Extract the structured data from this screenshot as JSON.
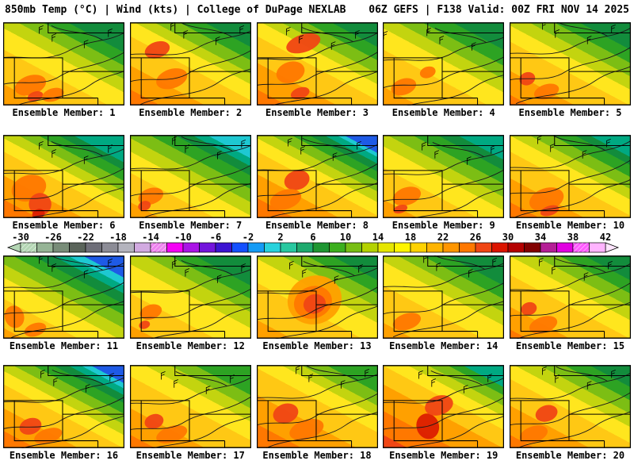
{
  "header": {
    "left": "850mb Temp (°C) | Wind (kts) | College of DuPage NEXLAB",
    "right": "06Z GEFS | F138 Valid: 00Z FRI NOV 14 2025"
  },
  "colorbar": {
    "unit": "°C",
    "ticks": [
      -30,
      -26,
      -22,
      -18,
      -14,
      -10,
      -6,
      -2,
      2,
      6,
      10,
      14,
      18,
      22,
      26,
      30,
      34,
      38,
      42
    ],
    "range": [
      -30,
      42
    ],
    "segment_step": 2,
    "segment_colors": [
      "#b4d6b4",
      "#96b496",
      "#788c78",
      "#5a645a",
      "#6e6e78",
      "#8c8c96",
      "#b4b4be",
      "#d2aae1",
      "#ee82ee",
      "#f500f5",
      "#aa14e6",
      "#7314dc",
      "#3c14d2",
      "#1450ff",
      "#149bf5",
      "#28d2dc",
      "#28c8a0",
      "#1eaa6e",
      "#1e9632",
      "#3caf1e",
      "#78be14",
      "#b4d200",
      "#e6e600",
      "#fff500",
      "#ffd200",
      "#ffb400",
      "#ff9600",
      "#ff7800",
      "#f04614",
      "#dc1400",
      "#b40000",
      "#820000",
      "#b41e96",
      "#e100e1",
      "#ff5aff",
      "#ffb4ff"
    ],
    "hatched_segments": [
      0,
      8,
      34
    ],
    "arrow_left_color": "#b4d6b4",
    "arrow_right_color": "#ffe6ff"
  },
  "palette": {
    "gold": "#ffc814",
    "yel": "#ffe61e",
    "yg": "#c3d40f",
    "grn1": "#7cbe14",
    "grn2": "#2da323",
    "dgrn": "#128c3c",
    "teal": "#00a982",
    "cyan": "#1ec8d2",
    "blue": "#1e5ae6",
    "org1": "#ffa000",
    "org2": "#ff7800",
    "red": "#f04614",
    "dred": "#dc1e00"
  },
  "map_overlay": {
    "state_borders": "M14,44 H74 V94 H14 Z M14,44 H0 M56,0 V13 H151 M74,61 H151 M74,94 H118 M118,94 V103",
    "contours": [
      "M-4,78 C20,70 48,82 72,66 C96,52 118,58 156,34",
      "M-4,44 C28,40 52,52 84,34 C110,20 130,26 156,10",
      "M10,106 C40,92 80,98 108,78 C128,64 142,66 156,58",
      "M60,4 C80,14 104,10 124,22"
    ],
    "wind_barbs": [
      [
        50,
        20
      ],
      [
        90,
        28
      ],
      [
        120,
        14
      ],
      [
        34,
        10
      ]
    ]
  },
  "panels": [
    {
      "member": 1,
      "label": "Ensemble Member: 1",
      "bands": [
        [
          "org1",
          0.16
        ],
        [
          "gold",
          0.42
        ],
        [
          "yel",
          0.58
        ],
        [
          "yg",
          0.68
        ],
        [
          "grn1",
          0.78
        ],
        [
          "grn2",
          0.88
        ],
        [
          "dgrn",
          1
        ]
      ],
      "spots": [
        [
          "org2",
          34,
          78,
          20,
          12
        ],
        [
          "red",
          40,
          92,
          10,
          6
        ],
        [
          "org2",
          62,
          90,
          14,
          8
        ]
      ],
      "shift": [
        0,
        0
      ]
    },
    {
      "member": 2,
      "label": "Ensemble Member: 2",
      "bands": [
        [
          "org2",
          0.12
        ],
        [
          "org1",
          0.3
        ],
        [
          "gold",
          0.52
        ],
        [
          "yel",
          0.64
        ],
        [
          "yg",
          0.72
        ],
        [
          "grn1",
          0.82
        ],
        [
          "grn2",
          0.92
        ],
        [
          "dgrn",
          1
        ]
      ],
      "spots": [
        [
          "red",
          34,
          34,
          16,
          10
        ],
        [
          "org2",
          52,
          70,
          20,
          12
        ]
      ],
      "shift": [
        3,
        -4
      ]
    },
    {
      "member": 3,
      "label": "Ensemble Member: 3",
      "bands": [
        [
          "org2",
          0.12
        ],
        [
          "org1",
          0.32
        ],
        [
          "gold",
          0.52
        ],
        [
          "yel",
          0.64
        ],
        [
          "yg",
          0.72
        ],
        [
          "grn1",
          0.82
        ],
        [
          "grn2",
          0.92
        ],
        [
          "dgrn",
          1
        ]
      ],
      "spots": [
        [
          "red",
          58,
          26,
          22,
          11
        ],
        [
          "org2",
          42,
          62,
          18,
          13
        ],
        [
          "red",
          54,
          88,
          12,
          7
        ]
      ],
      "shift": [
        -4,
        2
      ]
    },
    {
      "member": 4,
      "label": "Ensemble Member: 4",
      "bands": [
        [
          "org1",
          0.14
        ],
        [
          "gold",
          0.42
        ],
        [
          "yel",
          0.58
        ],
        [
          "yg",
          0.68
        ],
        [
          "grn1",
          0.78
        ],
        [
          "grn2",
          0.9
        ],
        [
          "dgrn",
          1
        ]
      ],
      "spots": [
        [
          "org2",
          26,
          80,
          16,
          10
        ],
        [
          "org2",
          56,
          62,
          10,
          7
        ]
      ],
      "shift": [
        5,
        3
      ]
    },
    {
      "member": 5,
      "label": "Ensemble Member: 5",
      "bands": [
        [
          "org2",
          0.08
        ],
        [
          "org1",
          0.26
        ],
        [
          "gold",
          0.48
        ],
        [
          "yel",
          0.6
        ],
        [
          "yg",
          0.7
        ],
        [
          "grn1",
          0.8
        ],
        [
          "grn2",
          0.9
        ],
        [
          "dgrn",
          1
        ]
      ],
      "spots": [
        [
          "red",
          22,
          70,
          10,
          8
        ],
        [
          "org2",
          46,
          86,
          16,
          9
        ]
      ],
      "shift": [
        -2,
        -5
      ]
    },
    {
      "member": 6,
      "label": "Ensemble Member: 6",
      "bands": [
        [
          "org2",
          0.14
        ],
        [
          "org1",
          0.32
        ],
        [
          "gold",
          0.5
        ],
        [
          "yel",
          0.6
        ],
        [
          "yg",
          0.68
        ],
        [
          "grn1",
          0.76
        ],
        [
          "grn2",
          0.84
        ],
        [
          "dgrn",
          0.9
        ],
        [
          "teal",
          1
        ]
      ],
      "spots": [
        [
          "org2",
          32,
          66,
          22,
          16
        ],
        [
          "red",
          46,
          86,
          14,
          14
        ],
        [
          "dred",
          44,
          98,
          8,
          6
        ]
      ],
      "shift": [
        0,
        4
      ]
    },
    {
      "member": 7,
      "label": "Ensemble Member: 7",
      "bands": [
        [
          "org1",
          0.12
        ],
        [
          "gold",
          0.34
        ],
        [
          "yel",
          0.5
        ],
        [
          "yg",
          0.6
        ],
        [
          "grn1",
          0.7
        ],
        [
          "grn2",
          0.8
        ],
        [
          "dgrn",
          0.87
        ],
        [
          "teal",
          0.93
        ],
        [
          "cyan",
          1
        ]
      ],
      "spots": [
        [
          "org2",
          26,
          76,
          16,
          10
        ],
        [
          "red",
          18,
          88,
          8,
          6
        ]
      ],
      "shift": [
        4,
        -2
      ]
    },
    {
      "member": 8,
      "label": "Ensemble Member: 8",
      "bands": [
        [
          "org2",
          0.15
        ],
        [
          "org1",
          0.33
        ],
        [
          "gold",
          0.5
        ],
        [
          "yel",
          0.6
        ],
        [
          "yg",
          0.68
        ],
        [
          "grn1",
          0.76
        ],
        [
          "grn2",
          0.83
        ],
        [
          "dgrn",
          0.89
        ],
        [
          "teal",
          0.94
        ],
        [
          "cyan",
          0.97
        ],
        [
          "blue",
          1
        ]
      ],
      "spots": [
        [
          "red",
          50,
          56,
          16,
          12
        ],
        [
          "org2",
          36,
          80,
          20,
          12
        ]
      ],
      "shift": [
        -3,
        0
      ]
    },
    {
      "member": 9,
      "label": "Ensemble Member: 9",
      "bands": [
        [
          "org1",
          0.14
        ],
        [
          "gold",
          0.38
        ],
        [
          "yel",
          0.54
        ],
        [
          "yg",
          0.64
        ],
        [
          "grn1",
          0.74
        ],
        [
          "grn2",
          0.84
        ],
        [
          "dgrn",
          0.92
        ],
        [
          "teal",
          1
        ]
      ],
      "spots": [
        [
          "org2",
          30,
          76,
          18,
          11
        ],
        [
          "red",
          22,
          92,
          9,
          5
        ]
      ],
      "shift": [
        2,
        5
      ]
    },
    {
      "member": 10,
      "label": "Ensemble Member: 10",
      "bands": [
        [
          "org2",
          0.12
        ],
        [
          "org1",
          0.3
        ],
        [
          "gold",
          0.5
        ],
        [
          "yel",
          0.62
        ],
        [
          "yg",
          0.7
        ],
        [
          "grn1",
          0.79
        ],
        [
          "grn2",
          0.88
        ],
        [
          "dgrn",
          0.94
        ],
        [
          "teal",
          1
        ]
      ],
      "spots": [
        [
          "org2",
          46,
          80,
          22,
          14
        ],
        [
          "red",
          50,
          94,
          12,
          6
        ]
      ],
      "shift": [
        -5,
        -3
      ]
    },
    {
      "member": 11,
      "label": "Ensemble Member: 11",
      "bands": [
        [
          "org1",
          0.08
        ],
        [
          "gold",
          0.3
        ],
        [
          "yel",
          0.46
        ],
        [
          "yg",
          0.56
        ],
        [
          "grn1",
          0.66
        ],
        [
          "grn2",
          0.74
        ],
        [
          "dgrn",
          0.82
        ],
        [
          "teal",
          0.88
        ],
        [
          "cyan",
          0.94
        ],
        [
          "blue",
          1
        ]
      ],
      "spots": [
        [
          "org2",
          14,
          76,
          12,
          14
        ],
        [
          "org2",
          40,
          92,
          14,
          8
        ]
      ],
      "shift": [
        0,
        -4
      ]
    },
    {
      "member": 12,
      "label": "Ensemble Member: 12",
      "bands": [
        [
          "org1",
          0.1
        ],
        [
          "gold",
          0.34
        ],
        [
          "yel",
          0.56
        ],
        [
          "yg",
          0.68
        ],
        [
          "grn1",
          0.78
        ],
        [
          "grn2",
          0.88
        ],
        [
          "dgrn",
          1
        ]
      ],
      "spots": [
        [
          "org2",
          26,
          70,
          14,
          9
        ],
        [
          "red",
          18,
          86,
          7,
          5
        ]
      ],
      "shift": [
        4,
        2
      ]
    },
    {
      "member": 13,
      "label": "Ensemble Member: 13",
      "bands": [
        [
          "org1",
          0.14
        ],
        [
          "gold",
          0.42
        ],
        [
          "yel",
          0.6
        ],
        [
          "yg",
          0.72
        ],
        [
          "grn1",
          0.82
        ],
        [
          "grn2",
          0.92
        ],
        [
          "dgrn",
          1
        ]
      ],
      "spots": [
        [
          "org1",
          72,
          55,
          34,
          30
        ],
        [
          "org2",
          70,
          58,
          24,
          20
        ],
        [
          "red",
          72,
          60,
          14,
          12
        ]
      ],
      "shift": [
        -2,
        3
      ]
    },
    {
      "member": 14,
      "label": "Ensemble Member: 14",
      "bands": [
        [
          "org1",
          0.12
        ],
        [
          "gold",
          0.4
        ],
        [
          "yel",
          0.58
        ],
        [
          "yg",
          0.68
        ],
        [
          "grn1",
          0.78
        ],
        [
          "grn2",
          0.88
        ],
        [
          "dgrn",
          1
        ]
      ],
      "spots": [
        [
          "org2",
          30,
          82,
          18,
          10
        ]
      ],
      "shift": [
        3,
        -5
      ]
    },
    {
      "member": 15,
      "label": "Ensemble Member: 15",
      "bands": [
        [
          "org2",
          0.07
        ],
        [
          "org1",
          0.24
        ],
        [
          "gold",
          0.48
        ],
        [
          "yel",
          0.62
        ],
        [
          "yg",
          0.72
        ],
        [
          "grn1",
          0.82
        ],
        [
          "grn2",
          0.92
        ],
        [
          "dgrn",
          1
        ]
      ],
      "spots": [
        [
          "red",
          24,
          66,
          10,
          8
        ],
        [
          "org2",
          42,
          86,
          18,
          10
        ]
      ],
      "shift": [
        -4,
        -1
      ]
    },
    {
      "member": 16,
      "label": "Ensemble Member: 16",
      "bands": [
        [
          "org2",
          0.13
        ],
        [
          "org1",
          0.3
        ],
        [
          "gold",
          0.48
        ],
        [
          "yel",
          0.58
        ],
        [
          "yg",
          0.66
        ],
        [
          "grn1",
          0.74
        ],
        [
          "grn2",
          0.82
        ],
        [
          "dgrn",
          0.88
        ],
        [
          "teal",
          0.93
        ],
        [
          "cyan",
          0.97
        ],
        [
          "blue",
          1
        ]
      ],
      "spots": [
        [
          "red",
          34,
          76,
          14,
          10
        ],
        [
          "org2",
          56,
          88,
          18,
          9
        ]
      ],
      "shift": [
        1,
        2
      ]
    },
    {
      "member": 17,
      "label": "Ensemble Member: 17",
      "bands": [
        [
          "org2",
          0.1
        ],
        [
          "org1",
          0.3
        ],
        [
          "gold",
          0.54
        ],
        [
          "yel",
          0.68
        ],
        [
          "yg",
          0.78
        ],
        [
          "grn1",
          0.88
        ],
        [
          "grn2",
          1
        ]
      ],
      "spots": [
        [
          "red",
          30,
          70,
          12,
          9
        ],
        [
          "org2",
          52,
          86,
          20,
          10
        ]
      ],
      "shift": [
        -3,
        4
      ]
    },
    {
      "member": 18,
      "label": "Ensemble Member: 18",
      "bands": [
        [
          "org2",
          0.18
        ],
        [
          "org1",
          0.4
        ],
        [
          "gold",
          0.6
        ],
        [
          "yel",
          0.72
        ],
        [
          "yg",
          0.8
        ],
        [
          "grn1",
          0.9
        ],
        [
          "grn2",
          1
        ]
      ],
      "spots": [
        [
          "red",
          36,
          60,
          16,
          12
        ],
        [
          "org2",
          62,
          80,
          22,
          12
        ]
      ],
      "shift": [
        2,
        -3
      ]
    },
    {
      "member": 19,
      "label": "Ensemble Member: 19",
      "bands": [
        [
          "red",
          0.1
        ],
        [
          "org2",
          0.28
        ],
        [
          "org1",
          0.48
        ],
        [
          "gold",
          0.62
        ],
        [
          "yel",
          0.72
        ],
        [
          "yg",
          0.8
        ],
        [
          "grn1",
          0.88
        ],
        [
          "grn2",
          0.94
        ],
        [
          "teal",
          1
        ]
      ],
      "spots": [
        [
          "dred",
          56,
          76,
          14,
          16
        ],
        [
          "red",
          70,
          50,
          18,
          12
        ]
      ],
      "shift": [
        0,
        3
      ]
    },
    {
      "member": 20,
      "label": "Ensemble Member: 20",
      "bands": [
        [
          "org2",
          0.1
        ],
        [
          "org1",
          0.32
        ],
        [
          "gold",
          0.52
        ],
        [
          "yel",
          0.64
        ],
        [
          "yg",
          0.74
        ],
        [
          "grn1",
          0.84
        ],
        [
          "grn2",
          0.94
        ],
        [
          "dgrn",
          1
        ]
      ],
      "spots": [
        [
          "red",
          46,
          60,
          14,
          10
        ],
        [
          "org2",
          30,
          86,
          18,
          10
        ]
      ],
      "shift": [
        -2,
        -2
      ]
    }
  ]
}
